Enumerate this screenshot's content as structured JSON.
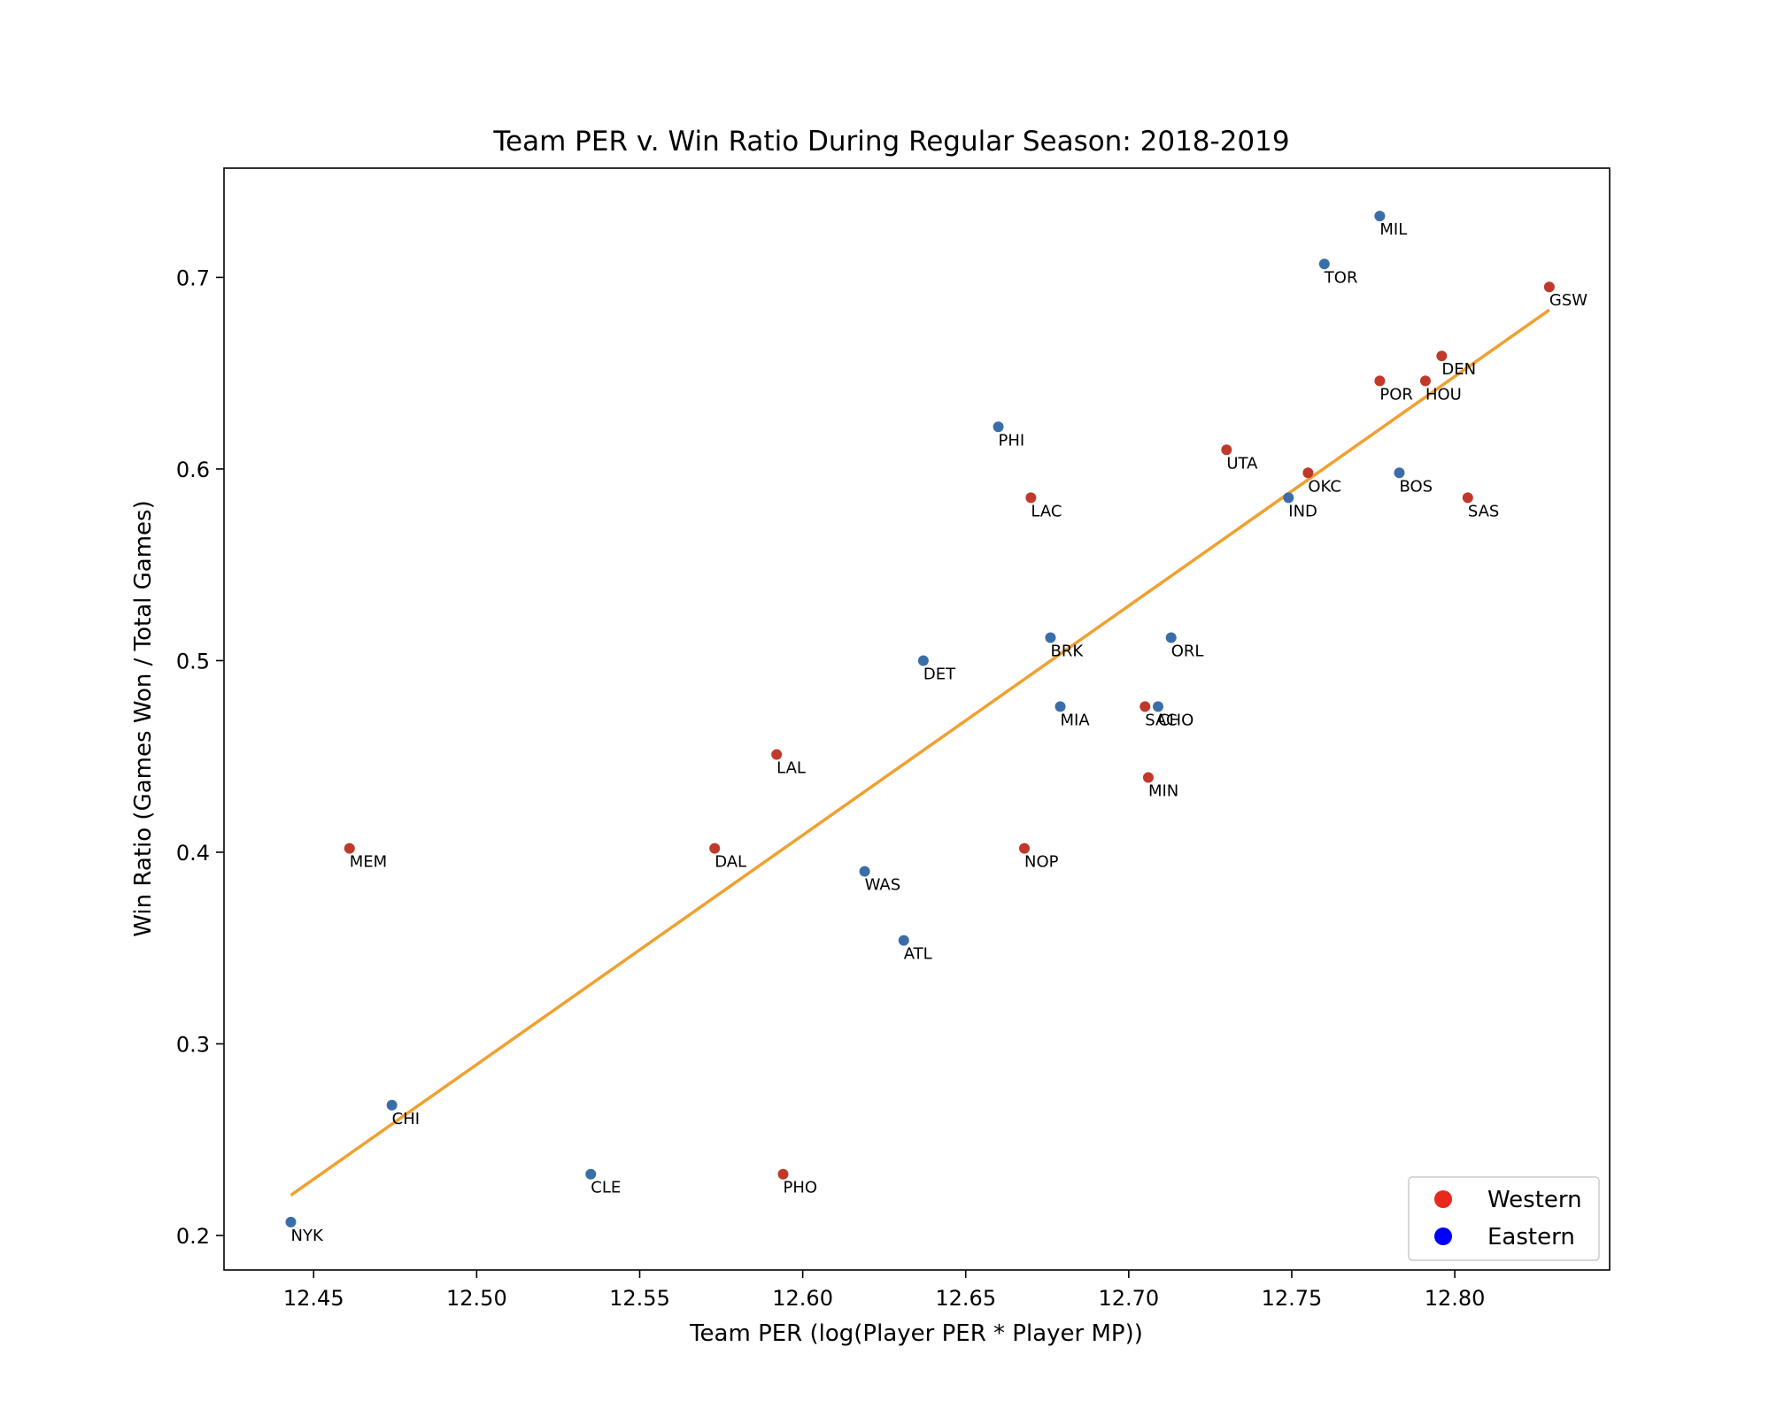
{
  "chart_data": {
    "type": "scatter",
    "title": "Team PER v. Win Ratio During Regular Season: 2018-2019",
    "xlabel": "Team PER (log(Player PER * Player MP))",
    "ylabel": "Win Ratio (Games Won / Total Games)",
    "xlim": [
      12.4225,
      12.8475
    ],
    "ylim": [
      0.182,
      0.757
    ],
    "xticks": [
      "12.45",
      "12.50",
      "12.55",
      "12.60",
      "12.65",
      "12.70",
      "12.75",
      "12.80"
    ],
    "yticks": [
      "0.2",
      "0.3",
      "0.4",
      "0.5",
      "0.6",
      "0.7"
    ],
    "grid": false,
    "legend_position": "bottom-right",
    "series": [
      {
        "name": "Western",
        "color": "#c0392b",
        "legend_color": "#e8291c",
        "points": [
          {
            "team": "GSW",
            "x": 12.829,
            "y": 0.695
          },
          {
            "team": "DEN",
            "x": 12.796,
            "y": 0.659
          },
          {
            "team": "POR",
            "x": 12.777,
            "y": 0.646
          },
          {
            "team": "HOU",
            "x": 12.791,
            "y": 0.646
          },
          {
            "team": "UTA",
            "x": 12.73,
            "y": 0.61
          },
          {
            "team": "OKC",
            "x": 12.755,
            "y": 0.598
          },
          {
            "team": "SAS",
            "x": 12.804,
            "y": 0.585
          },
          {
            "team": "LAC",
            "x": 12.67,
            "y": 0.585
          },
          {
            "team": "SAC",
            "x": 12.705,
            "y": 0.476
          },
          {
            "team": "MIN",
            "x": 12.706,
            "y": 0.439
          },
          {
            "team": "LAL",
            "x": 12.592,
            "y": 0.451
          },
          {
            "team": "MEM",
            "x": 12.461,
            "y": 0.402
          },
          {
            "team": "DAL",
            "x": 12.573,
            "y": 0.402
          },
          {
            "team": "NOP",
            "x": 12.668,
            "y": 0.402
          },
          {
            "team": "PHO",
            "x": 12.594,
            "y": 0.232
          }
        ]
      },
      {
        "name": "Eastern",
        "color": "#3a6ea8",
        "legend_color": "#0000ff",
        "points": [
          {
            "team": "MIL",
            "x": 12.777,
            "y": 0.732
          },
          {
            "team": "TOR",
            "x": 12.76,
            "y": 0.707
          },
          {
            "team": "PHI",
            "x": 12.66,
            "y": 0.622
          },
          {
            "team": "BOS",
            "x": 12.783,
            "y": 0.598
          },
          {
            "team": "IND",
            "x": 12.749,
            "y": 0.585
          },
          {
            "team": "BRK",
            "x": 12.676,
            "y": 0.512
          },
          {
            "team": "ORL",
            "x": 12.713,
            "y": 0.512
          },
          {
            "team": "DET",
            "x": 12.637,
            "y": 0.5
          },
          {
            "team": "MIA",
            "x": 12.679,
            "y": 0.476
          },
          {
            "team": "CHO",
            "x": 12.709,
            "y": 0.476
          },
          {
            "team": "WAS",
            "x": 12.619,
            "y": 0.39
          },
          {
            "team": "ATL",
            "x": 12.631,
            "y": 0.354
          },
          {
            "team": "CHI",
            "x": 12.474,
            "y": 0.268
          },
          {
            "team": "CLE",
            "x": 12.535,
            "y": 0.232
          },
          {
            "team": "NYK",
            "x": 12.443,
            "y": 0.207
          }
        ]
      }
    ],
    "trendline": {
      "color": "#f0a030",
      "x": [
        12.443,
        12.829
      ],
      "y": [
        0.221,
        0.683
      ]
    }
  }
}
